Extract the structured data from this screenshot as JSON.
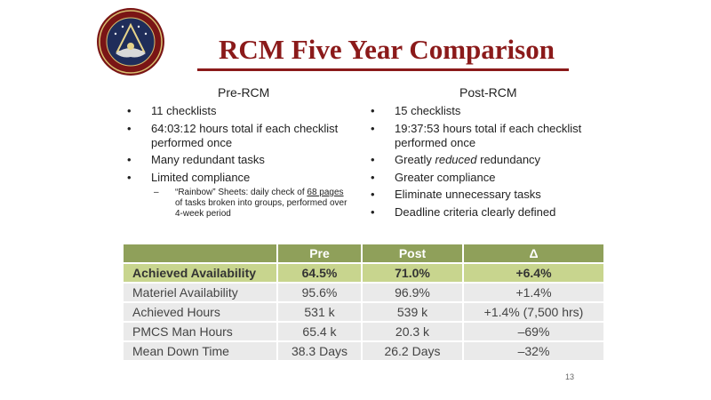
{
  "title": "RCM Five Year Comparison",
  "pre": {
    "heading": "Pre-RCM",
    "bullets": [
      "11 checklists",
      "64:03:12 hours total if each checklist performed once",
      "Many redundant tasks",
      "Limited compliance"
    ],
    "sub_dash": "–",
    "sub_parts": [
      "“Rainbow” Sheets: daily check of ",
      "68 pages",
      " of tasks broken into groups, performed over 4-week period"
    ]
  },
  "post": {
    "heading": "Post-RCM",
    "bullets": [
      "15 checklists",
      "19:37:53 hours total if each checklist performed once",
      "Greatly reduced redundancy",
      "Greater compliance",
      "Eliminate unnecessary tasks",
      "Deadline criteria clearly defined"
    ],
    "bullet3_parts": [
      "Greatly ",
      "reduced",
      " redundancy"
    ]
  },
  "table": {
    "headers": [
      "",
      "Pre",
      "Post",
      "Δ"
    ],
    "rows": [
      [
        "Achieved Availability",
        "64.5%",
        "71.0%",
        "+6.4%"
      ],
      [
        "Materiel Availability",
        "95.6%",
        "96.9%",
        "+1.4%"
      ],
      [
        "Achieved Hours",
        "531 k",
        "539 k",
        "+1.4% (7,500 hrs)"
      ],
      [
        "PMCS Man Hours",
        "65.4 k",
        "20.3 k",
        "–69%"
      ],
      [
        "Mean Down Time",
        "38.3 Days",
        "26.2 Days",
        "–32%"
      ]
    ]
  },
  "page_number": "13",
  "colors": {
    "title": "#8b1a1a",
    "header": "#8fa05a",
    "highlight": "#c8d58e",
    "row": "#eaeaea"
  },
  "seal_icon": "command-seal-emblem"
}
